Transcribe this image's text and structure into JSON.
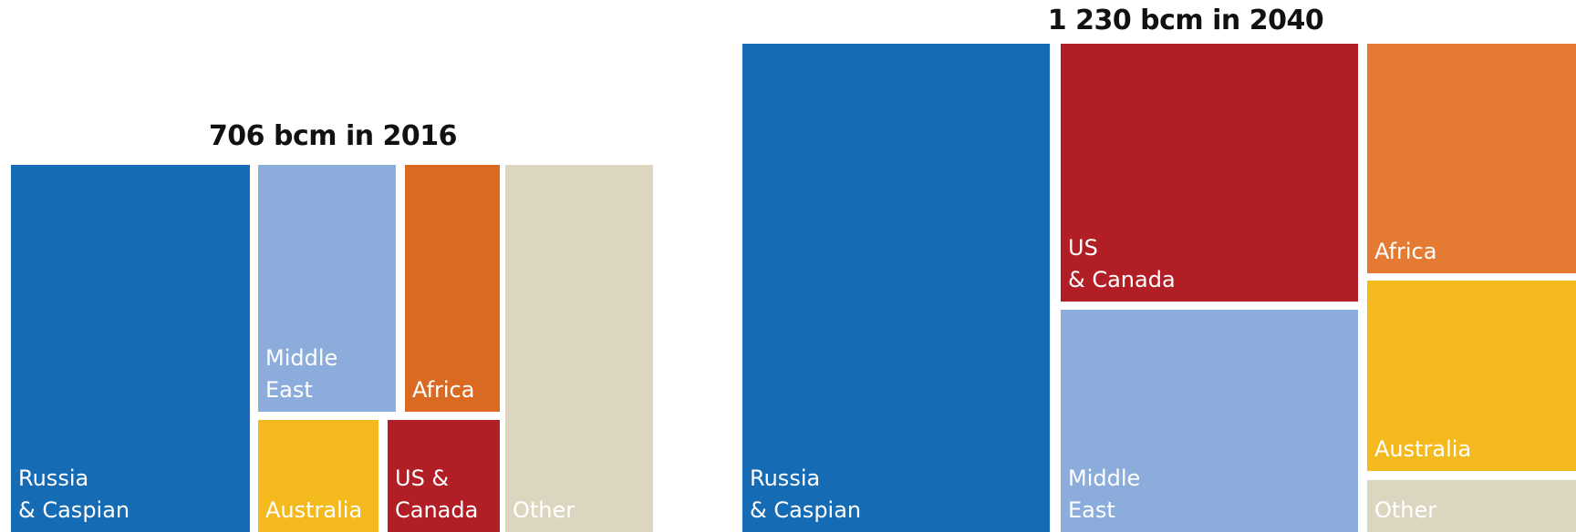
{
  "colors": {
    "russia_caspian": "#166BB5",
    "middle_east": "#8CADDB",
    "africa": "#DA6A22",
    "australia": "#F4BA1D",
    "us_canada": "#B11E25",
    "africa_2040": "#E57A33",
    "other": "#DCD6C1"
  },
  "chart_data": [
    {
      "type": "treemap",
      "title": "706 bcm in 2016",
      "unit": "bcm",
      "total": 706,
      "year": 2016,
      "series": [
        {
          "label_lines": [
            "Russia",
            "& Caspian"
          ],
          "value": 233
        },
        {
          "label_lines": [
            "Middle",
            "East"
          ],
          "value": 104
        },
        {
          "label_lines": [
            "Africa"
          ],
          "value": 63
        },
        {
          "label_lines": [
            "Australia"
          ],
          "value": 58
        },
        {
          "label_lines": [
            "US &",
            "Canada"
          ],
          "value": 54
        },
        {
          "label_lines": [
            "Other"
          ],
          "value": 194
        }
      ]
    },
    {
      "type": "treemap",
      "title": "1 230 bcm in 2040",
      "unit": "bcm",
      "total": 1230,
      "year": 2040,
      "series": [
        {
          "label_lines": [
            "Russia",
            "& Caspian"
          ],
          "value": 390
        },
        {
          "label_lines": [
            "US",
            "& Canada"
          ],
          "value": 268
        },
        {
          "label_lines": [
            "Middle",
            "East"
          ],
          "value": 250
        },
        {
          "label_lines": [
            "Africa"
          ],
          "value": 145
        },
        {
          "label_lines": [
            "Australia"
          ],
          "value": 120
        },
        {
          "label_lines": [
            "Other"
          ],
          "value": 57
        }
      ]
    }
  ]
}
